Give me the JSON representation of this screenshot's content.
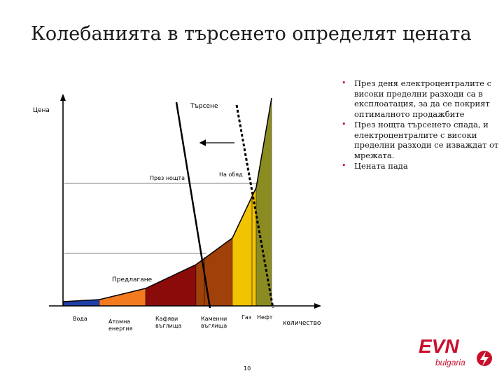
{
  "slide": {
    "title": "Колебанията в търсенето определят цената",
    "page_number": "10"
  },
  "bullets": [
    "През деня електроцентралите с високи пределни разходи са в експлоатация, за да се покрият оптималното продажбите",
    "През нощта търсенето спада, и електроцентралите с високи пределни разходи се изваждат от мрежата.",
    "Цената пада"
  ],
  "diagram": {
    "y_axis_label": "Цена",
    "x_axis_label": "количество",
    "demand_label": "Търсене",
    "night_label": "През нощта",
    "noon_label": "На обяд",
    "supply_label": "Предлагане",
    "sources": [
      {
        "label": "Вода",
        "color": "#1f3fa8"
      },
      {
        "label": "Атомна енергия",
        "color": "#f47a1f"
      },
      {
        "label": "Кафяви въглища",
        "color": "#8b0a0a"
      },
      {
        "label": "Каменни въглища",
        "color": "#a0410a"
      },
      {
        "label": "Газ",
        "color": "#f2c300"
      },
      {
        "label": "Нефт",
        "color": "#8a8c22"
      }
    ]
  },
  "logo": {
    "text": "EVN",
    "subtext": "bulgaria",
    "color": "#c8102e"
  }
}
